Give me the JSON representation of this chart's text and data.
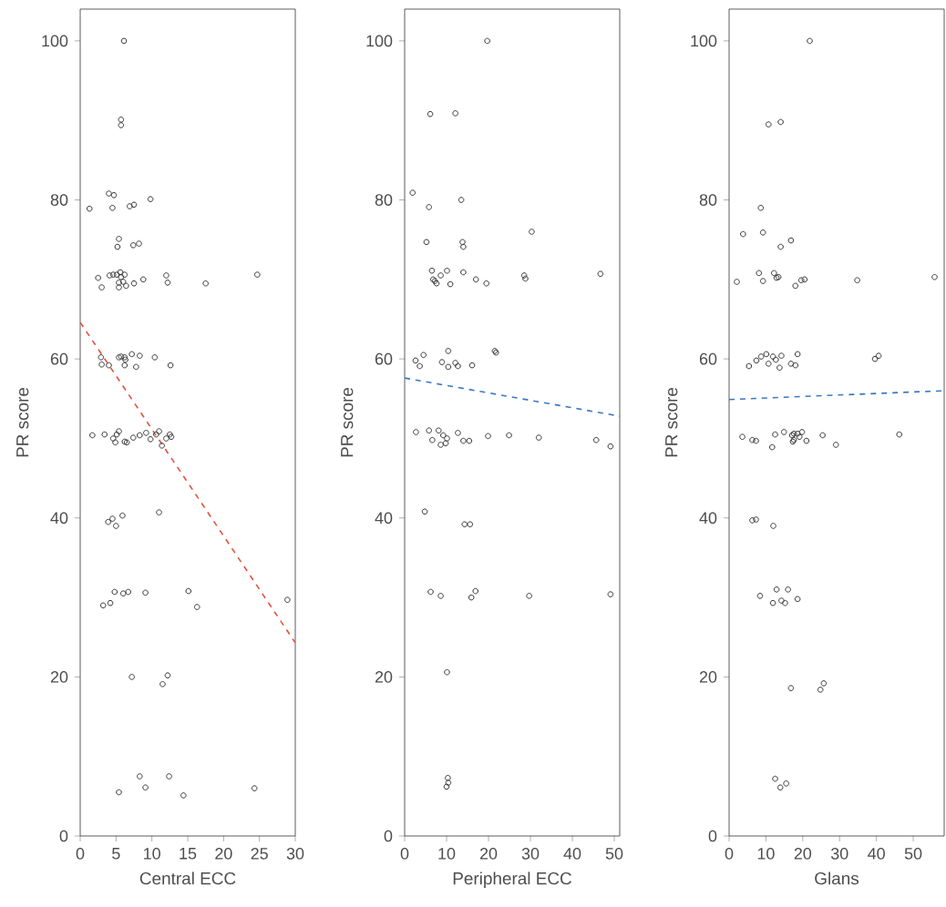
{
  "chart_data": [
    {
      "type": "scatter",
      "xlabel": "Central ECC",
      "ylabel": "PR score",
      "xlim": [
        0,
        30
      ],
      "ylim": [
        0,
        104
      ],
      "xticks": [
        0,
        5,
        10,
        15,
        20,
        25,
        30
      ],
      "yticks": [
        0,
        20,
        40,
        60,
        80,
        100
      ],
      "series": [
        {
          "marker": "circle",
          "color": "#333333",
          "x": [
            6.1,
            5.7,
            5.7,
            1.3,
            4.0,
            4.7,
            4.5,
            6.9,
            7.5,
            9.8,
            5.4,
            5.2,
            7.4,
            8.2,
            2.5,
            3.0,
            4.1,
            4.6,
            5.1,
            5.4,
            5.4,
            5.7,
            6.0,
            6.2,
            6.4,
            5.6,
            7.5,
            8.8,
            12.0,
            12.2,
            17.5,
            24.7,
            2.9,
            3.0,
            4.0,
            5.4,
            5.7,
            6.2,
            6.2,
            6.3,
            7.2,
            8.3,
            7.8,
            10.4,
            12.6,
            1.7,
            3.4,
            4.6,
            5.1,
            5.4,
            4.9,
            6.2,
            6.5,
            7.4,
            8.3,
            9.2,
            9.8,
            10.6,
            11.0,
            11.4,
            12.0,
            12.5,
            12.7,
            3.9,
            4.5,
            5.0,
            5.9,
            11.0,
            3.2,
            4.2,
            4.8,
            6.0,
            6.7,
            9.1,
            15.1,
            16.3,
            28.9,
            7.2,
            12.2,
            11.5,
            5.4,
            8.3,
            9.1,
            12.4,
            14.4,
            24.3
          ],
          "values": [
            100,
            90.1,
            89.4,
            78.9,
            80.8,
            80.6,
            79.0,
            79.2,
            79.4,
            80.1,
            75.1,
            74.1,
            74.3,
            74.5,
            70.2,
            69.0,
            70.5,
            70.6,
            70.6,
            69.6,
            69.0,
            70.3,
            69.7,
            70.6,
            69.2,
            70.9,
            69.5,
            70.0,
            70.5,
            69.6,
            69.5,
            70.6,
            60.2,
            59.3,
            59.2,
            60.2,
            60.3,
            60.2,
            59.2,
            59.9,
            60.6,
            60.4,
            59.0,
            60.2,
            59.2,
            50.4,
            50.5,
            50.0,
            50.5,
            50.9,
            49.5,
            49.6,
            49.5,
            50.1,
            50.4,
            50.7,
            49.9,
            50.5,
            50.9,
            49.1,
            50.0,
            50.5,
            50.2,
            39.5,
            39.9,
            39.0,
            40.3,
            40.7,
            29.0,
            29.3,
            30.7,
            30.5,
            30.7,
            30.6,
            30.8,
            28.8,
            29.7,
            20.0,
            20.2,
            19.1,
            5.5,
            7.5,
            6.1,
            7.5,
            5.1,
            6.0
          ]
        },
        {
          "type": "line",
          "line_style": "dashed",
          "color": "#e0533d",
          "x": [
            0,
            30
          ],
          "values": [
            64.6,
            24.3
          ]
        }
      ]
    },
    {
      "type": "scatter",
      "xlabel": "Peripheral ECC",
      "ylabel": "PR score",
      "xlim": [
        0,
        51.3
      ],
      "ylim": [
        0,
        104
      ],
      "xticks": [
        0,
        10,
        20,
        30,
        40,
        50
      ],
      "yticks": [
        0,
        20,
        40,
        60,
        80,
        100
      ],
      "series": [
        {
          "marker": "circle",
          "color": "#333333",
          "x": [
            19.7,
            6.1,
            12.1,
            1.9,
            5.8,
            13.5,
            5.2,
            13.8,
            14.0,
            30.3,
            6.5,
            6.8,
            7.2,
            7.6,
            8.6,
            10.1,
            10.9,
            14.0,
            17.0,
            19.5,
            28.5,
            28.8,
            46.7,
            2.6,
            3.6,
            4.5,
            8.9,
            10.4,
            10.4,
            12.1,
            12.7,
            16.1,
            21.5,
            21.8,
            2.7,
            5.8,
            6.6,
            8.1,
            8.6,
            9.8,
            9.2,
            10.1,
            12.7,
            14.0,
            15.4,
            19.9,
            24.9,
            32.0,
            45.7,
            49.1,
            4.8,
            14.3,
            15.6,
            6.2,
            8.6,
            15.9,
            16.9,
            29.7,
            49.1,
            10.1,
            10.3,
            10.4,
            10.0
          ],
          "values": [
            100,
            90.8,
            90.9,
            80.9,
            79.1,
            80.0,
            74.7,
            74.7,
            74.1,
            76.0,
            71.1,
            70.0,
            69.8,
            69.5,
            70.5,
            71.1,
            69.4,
            70.9,
            70.0,
            69.5,
            70.5,
            70.1,
            70.7,
            59.8,
            59.1,
            60.5,
            59.6,
            61.0,
            59.0,
            59.5,
            59.1,
            59.2,
            61.0,
            60.8,
            50.8,
            51.0,
            49.8,
            51.0,
            49.2,
            49.4,
            50.4,
            50.0,
            50.7,
            49.7,
            49.7,
            50.3,
            50.4,
            50.1,
            49.8,
            49.0,
            40.8,
            39.2,
            39.2,
            30.7,
            30.2,
            30.0,
            30.8,
            30.2,
            30.4,
            20.6,
            7.3,
            6.7,
            6.2
          ]
        },
        {
          "type": "line",
          "line_style": "dashed",
          "color": "#3a78c2",
          "x": [
            0,
            51.3
          ],
          "values": [
            57.6,
            52.8
          ]
        }
      ]
    },
    {
      "type": "scatter",
      "xlabel": "Glans",
      "ylabel": "PR score",
      "xlim": [
        0,
        58.4
      ],
      "ylim": [
        0,
        104
      ],
      "xticks": [
        0,
        10,
        20,
        30,
        40,
        50
      ],
      "yticks": [
        0,
        20,
        40,
        60,
        80,
        100
      ],
      "series": [
        {
          "marker": "circle",
          "color": "#333333",
          "x": [
            21.9,
            10.7,
            14.0,
            8.6,
            3.8,
            9.2,
            16.8,
            14.0,
            2.1,
            8.1,
            9.2,
            12.2,
            12.9,
            13.4,
            18.0,
            19.6,
            20.5,
            34.8,
            55.8,
            5.4,
            7.4,
            8.7,
            10.1,
            10.7,
            11.9,
            12.7,
            13.7,
            14.2,
            16.8,
            18.0,
            18.6,
            39.6,
            40.6,
            3.6,
            6.3,
            7.3,
            12.5,
            11.7,
            14.9,
            17.1,
            17.3,
            17.6,
            18.6,
            19.1,
            19.8,
            17.6,
            21.0,
            25.4,
            29.0,
            46.2,
            6.3,
            7.3,
            12.0,
            8.4,
            12.9,
            16.0,
            11.9,
            14.2,
            15.2,
            18.6,
            16.8,
            24.8,
            25.7,
            12.5,
            13.9,
            15.5
          ],
          "values": [
            100,
            89.5,
            89.8,
            79.0,
            75.7,
            75.9,
            74.9,
            74.1,
            69.7,
            70.8,
            69.8,
            70.8,
            70.2,
            70.3,
            69.2,
            69.9,
            70.0,
            69.9,
            70.3,
            59.1,
            59.8,
            60.3,
            60.6,
            59.4,
            60.3,
            59.9,
            58.9,
            60.4,
            59.4,
            59.2,
            60.6,
            60.0,
            60.4,
            50.2,
            49.8,
            49.7,
            50.5,
            48.9,
            50.8,
            50.4,
            49.6,
            50.6,
            50.6,
            50.2,
            50.8,
            49.8,
            49.7,
            50.4,
            49.2,
            50.5,
            39.7,
            39.8,
            39.0,
            30.2,
            31.0,
            31.0,
            29.3,
            29.6,
            29.3,
            29.8,
            18.6,
            18.4,
            19.2,
            7.2,
            6.1,
            6.6
          ]
        },
        {
          "type": "line",
          "line_style": "dashed",
          "color": "#3a78c2",
          "x": [
            0,
            58.4
          ],
          "values": [
            54.9,
            56.0
          ]
        }
      ]
    }
  ]
}
